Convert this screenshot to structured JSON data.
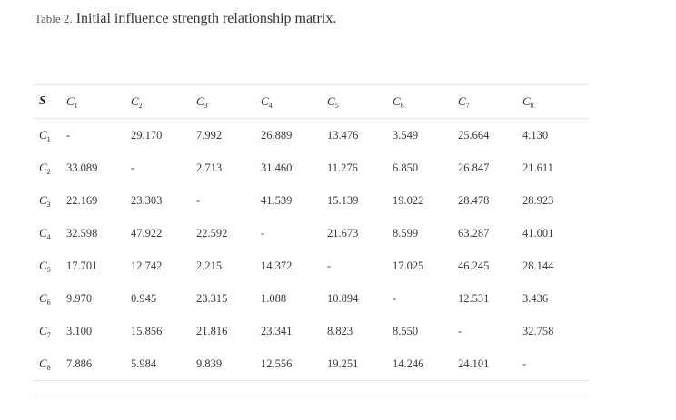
{
  "caption": {
    "label": "Table 2.",
    "text": "Initial influence strength relationship matrix."
  },
  "table": {
    "corner": "S",
    "columns": [
      {
        "letter": "C",
        "sub": "1"
      },
      {
        "letter": "C",
        "sub": "2"
      },
      {
        "letter": "C",
        "sub": "3"
      },
      {
        "letter": "C",
        "sub": "4"
      },
      {
        "letter": "C",
        "sub": "5"
      },
      {
        "letter": "C",
        "sub": "6"
      },
      {
        "letter": "C",
        "sub": "7"
      },
      {
        "letter": "C",
        "sub": "8"
      }
    ],
    "rows": [
      {
        "letter": "C",
        "sub": "1",
        "values": [
          "-",
          "29.170",
          "7.992",
          "26.889",
          "13.476",
          "3.549",
          "25.664",
          "4.130"
        ]
      },
      {
        "letter": "C",
        "sub": "2",
        "values": [
          "33.089",
          "-",
          "2.713",
          "31.460",
          "11.276",
          "6.850",
          "26.847",
          "21.611"
        ]
      },
      {
        "letter": "C",
        "sub": "3",
        "values": [
          "22.169",
          "23.303",
          "-",
          "41.539",
          "15.139",
          "19.022",
          "28.478",
          "28.923"
        ]
      },
      {
        "letter": "C",
        "sub": "4",
        "values": [
          "32.598",
          "47.922",
          "22.592",
          "-",
          "21.673",
          "8.599",
          "63.287",
          "41.001"
        ]
      },
      {
        "letter": "C",
        "sub": "5",
        "values": [
          "17.701",
          "12.742",
          "2.215",
          "14.372",
          "-",
          "17.025",
          "46.245",
          "28.144"
        ]
      },
      {
        "letter": "C",
        "sub": "6",
        "values": [
          "9.970",
          "0.945",
          "23.315",
          "1.088",
          "10.894",
          "-",
          "12.531",
          "3.436"
        ]
      },
      {
        "letter": "C",
        "sub": "7",
        "values": [
          "3.100",
          "15.856",
          "21.816",
          "23.341",
          "8.823",
          "8.550",
          "-",
          "32.758"
        ]
      },
      {
        "letter": "C",
        "sub": "8",
        "values": [
          "7.886",
          "5.984",
          "9.839",
          "12.556",
          "19.251",
          "14.246",
          "24.101",
          "-"
        ]
      }
    ]
  }
}
